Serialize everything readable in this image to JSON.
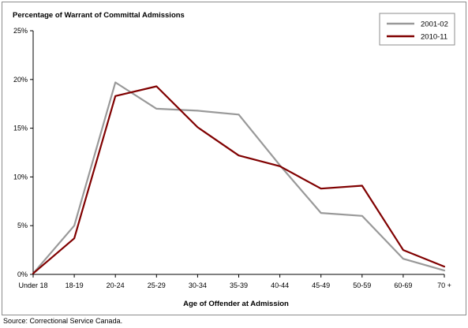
{
  "chart_data": {
    "type": "line",
    "title": "",
    "ylabel": "Percentage of Warrant of Committal Admissions",
    "xlabel": "Age of Offender at Admission",
    "categories": [
      "Under 18",
      "18-19",
      "20-24",
      "25-29",
      "30-34",
      "35-39",
      "40-44",
      "45-49",
      "50-59",
      "60-69",
      "70 +"
    ],
    "y_ticks": [
      "0%",
      "5%",
      "10%",
      "15%",
      "20%",
      "25%"
    ],
    "ylim": [
      0,
      25
    ],
    "grid": false,
    "legend_position": "top-right",
    "series": [
      {
        "name": "2001-02",
        "color": "#999999",
        "values": [
          0.1,
          5.0,
          19.7,
          17.0,
          16.8,
          16.4,
          11.2,
          6.3,
          6.0,
          1.6,
          0.4
        ]
      },
      {
        "name": "2010-11",
        "color": "#800000",
        "values": [
          0.1,
          3.7,
          18.3,
          19.3,
          15.1,
          12.2,
          11.1,
          8.8,
          9.1,
          2.5,
          0.8
        ]
      }
    ]
  },
  "source": "Source:  Correctional Service Canada."
}
